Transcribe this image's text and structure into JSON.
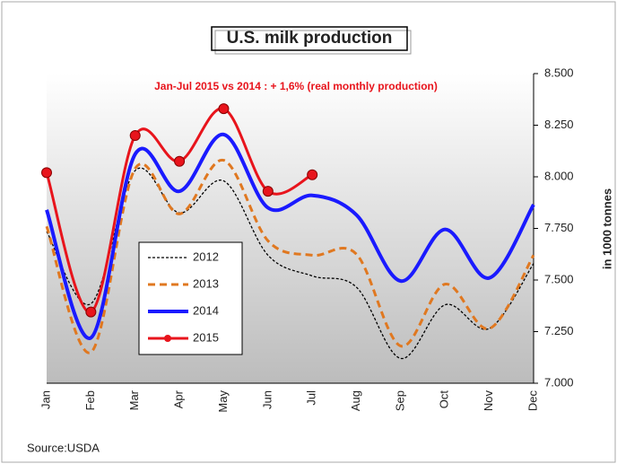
{
  "chart_data": {
    "type": "line",
    "title": "U.S. milk production",
    "annotation": "Jan-Jul 2015 vs 2014 : + 1,6%  (real monthly production)",
    "y_label": "in 1000 tonnes",
    "source": "Source:USDA",
    "categories": [
      "Jan",
      "Feb",
      "Mar",
      "Apr",
      "May",
      "Jun",
      "Jul",
      "Aug",
      "Sep",
      "Oct",
      "Nov",
      "Dec"
    ],
    "series": [
      {
        "name": "2012",
        "color": "#000000",
        "values": [
          7735,
          7385,
          8030,
          7825,
          7980,
          7620,
          7520,
          7465,
          7120,
          7380,
          7265,
          7580
        ]
      },
      {
        "name": "2013",
        "color": "#e07820",
        "values": [
          7760,
          7150,
          8040,
          7820,
          8080,
          7690,
          7620,
          7625,
          7180,
          7480,
          7265,
          7620
        ]
      },
      {
        "name": "2014",
        "color": "#1a1aff",
        "values": [
          7840,
          7220,
          8110,
          7930,
          8205,
          7850,
          7910,
          7815,
          7495,
          7745,
          7510,
          7865
        ]
      },
      {
        "name": "2015",
        "color": "#e8141c",
        "values": [
          8020,
          7345,
          8200,
          8075,
          8330,
          7930,
          8010,
          null,
          null,
          null,
          null,
          null
        ]
      }
    ],
    "ylim": [
      7000,
      8500
    ],
    "yticks": [
      {
        "value": 7000,
        "label": "7.000"
      },
      {
        "value": 7250,
        "label": "7.250"
      },
      {
        "value": 7500,
        "label": "7.500"
      },
      {
        "value": 7750,
        "label": "7.750"
      },
      {
        "value": 8000,
        "label": "8.000"
      },
      {
        "value": 8250,
        "label": "8.250"
      },
      {
        "value": 8500,
        "label": "8.500"
      }
    ]
  }
}
